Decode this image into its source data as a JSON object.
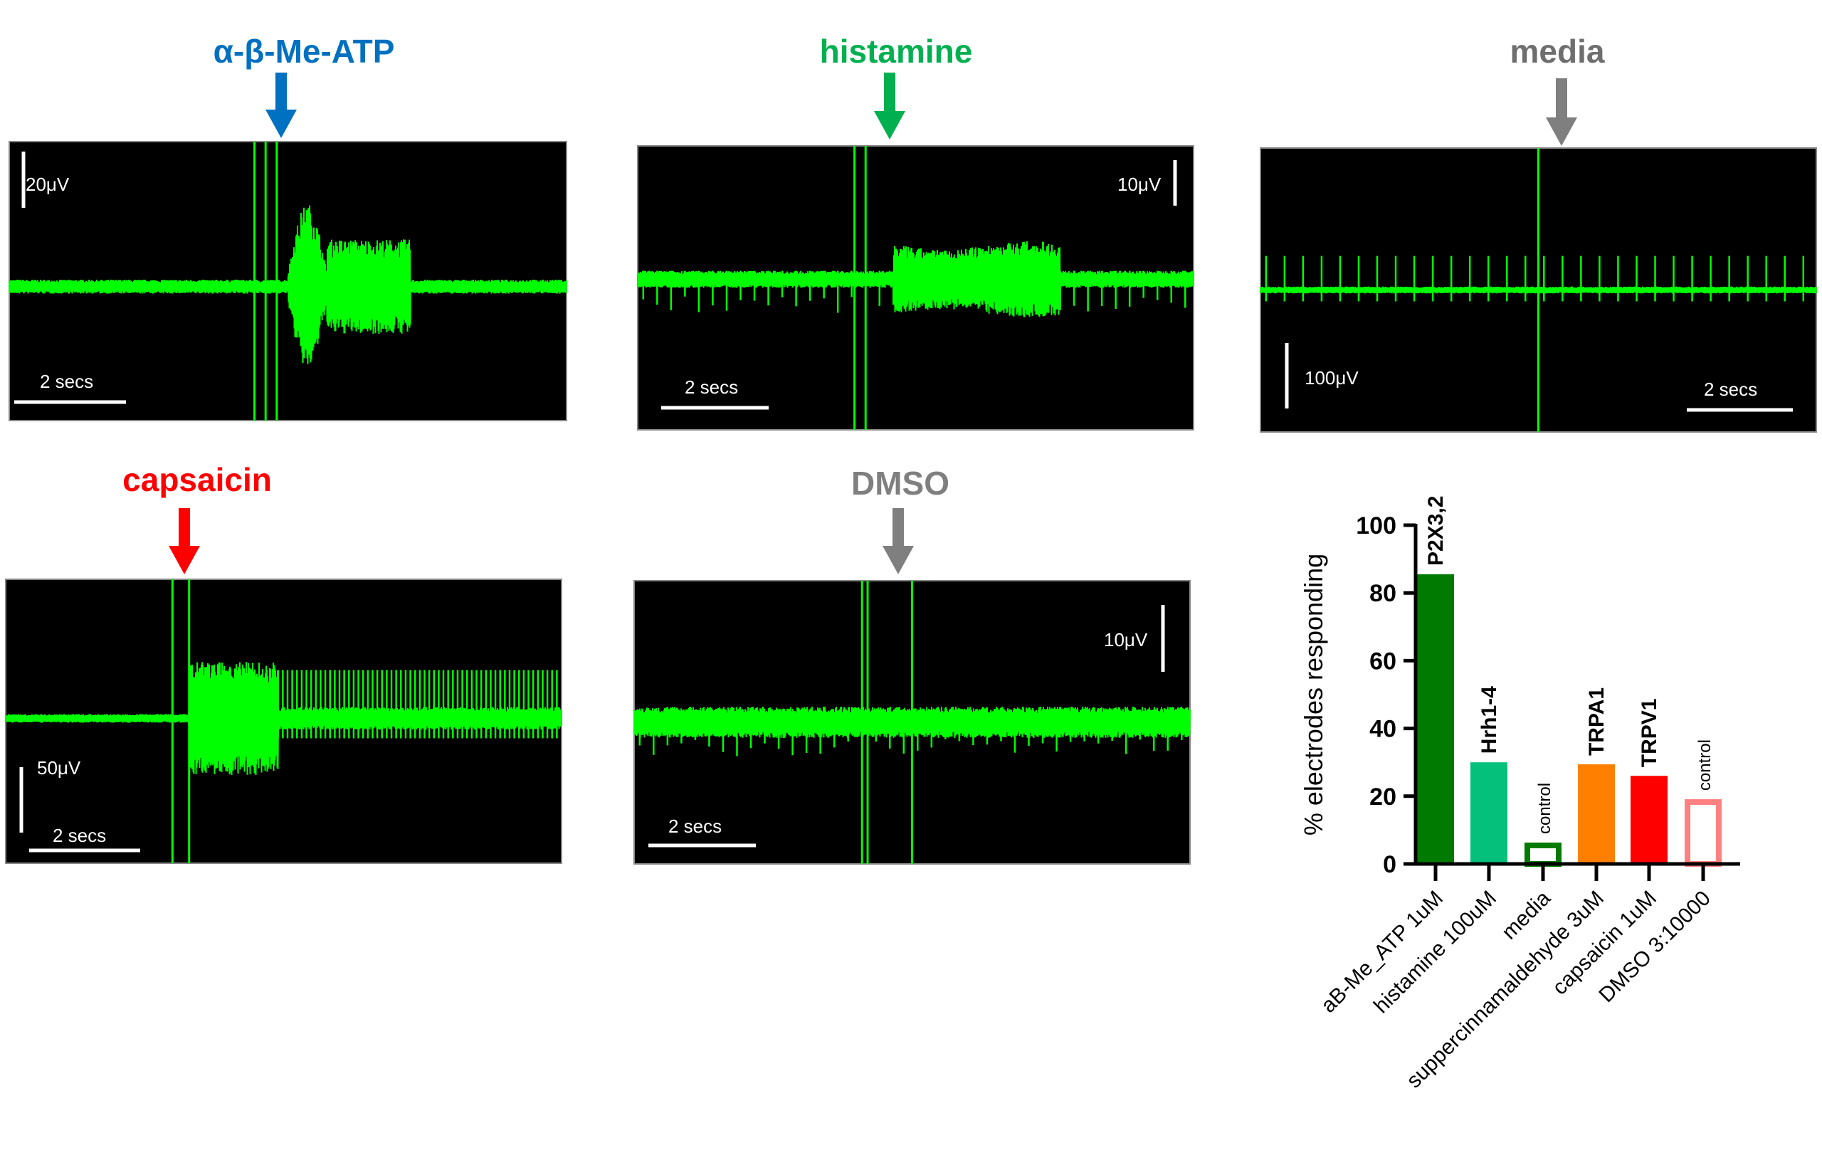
{
  "colors": {
    "trace": "#00ff00",
    "panel_bg": "#000000",
    "scale_bar": "#ffffff"
  },
  "panels": [
    {
      "title": "α-β-Me-ATP",
      "title_color": "#0070c0",
      "arrow_color": "#0070c0",
      "amp_label": "20μV",
      "time_label": "2 secs"
    },
    {
      "title": "histamine",
      "title_color": "#00b050",
      "arrow_color": "#00b050",
      "amp_label": "10μV",
      "time_label": "2 secs"
    },
    {
      "title": "media",
      "title_color": "#6e6e6e",
      "arrow_color": "#7f7f7f",
      "amp_label": "100μV",
      "time_label": "2 secs"
    },
    {
      "title": "capsaicin",
      "title_color": "#ff0000",
      "arrow_color": "#ff0000",
      "amp_label": "50μV",
      "time_label": "2 secs"
    },
    {
      "title": "DMSO",
      "title_color": "#7f7f7f",
      "arrow_color": "#7f7f7f",
      "amp_label": "10μV",
      "time_label": "2 secs"
    }
  ],
  "chart_data": {
    "type": "bar",
    "ylabel": "% electrodes responding",
    "xlabel": "",
    "ylim": [
      0,
      100
    ],
    "yticks": [
      "0",
      "20",
      "40",
      "60",
      "80",
      "100"
    ],
    "grid": false,
    "categories": [
      "aB-Me_ATP 1uM",
      "histamine 100uM",
      "media",
      "suppercinnamaldehyde 3uM",
      "capsaicin 1uM",
      "DMSO 3:10000"
    ],
    "values": [
      85.5,
      30,
      6.3,
      29.4,
      26,
      19.1
    ],
    "bar_labels": [
      "P2X3,2",
      "Hrh1-4",
      "control",
      "TRPA1",
      "TRPV1",
      "control"
    ],
    "bar_colors": [
      "#007a00",
      "#05c07a",
      "#007a00",
      "#ff8000",
      "#ff0000",
      "#ff8080"
    ],
    "bar_filled": [
      true,
      true,
      false,
      true,
      true,
      false
    ]
  }
}
